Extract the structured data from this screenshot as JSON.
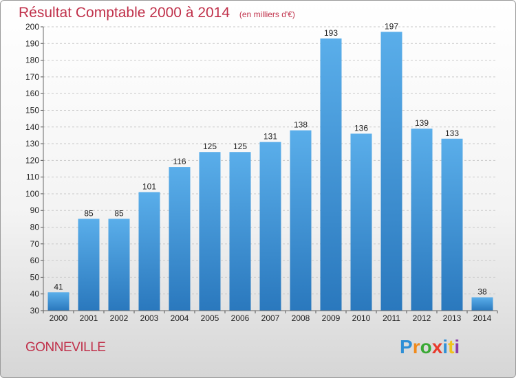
{
  "chart_data": {
    "type": "bar",
    "title": "Résultat Comptable 2000 à 2014",
    "subtitle": "(en milliers d'€)",
    "categories": [
      "2000",
      "2001",
      "2002",
      "2003",
      "2004",
      "2005",
      "2006",
      "2007",
      "2008",
      "2009",
      "2010",
      "2011",
      "2012",
      "2013",
      "2014"
    ],
    "values": [
      41,
      85,
      85,
      101,
      116,
      125,
      125,
      131,
      138,
      193,
      136,
      197,
      139,
      133,
      38
    ],
    "ylim": [
      30,
      200
    ],
    "yticks": [
      30,
      40,
      50,
      60,
      70,
      80,
      90,
      100,
      110,
      120,
      130,
      140,
      150,
      160,
      170,
      180,
      190,
      200
    ],
    "grid": true,
    "bar_color_top": "#5aaeea",
    "bar_color_bottom": "#2a78bd"
  },
  "place_label": "GONNEVILLE",
  "logo": {
    "letters": [
      "P",
      "r",
      "o",
      "x",
      "i",
      "t",
      "i"
    ],
    "colors": [
      "#2e8fd6",
      "#f08a1c",
      "#3aa935",
      "#e83a2c",
      "#2e8fd6",
      "#f0c21c",
      "#8b3aa9"
    ]
  },
  "colors": {
    "title": "#c0304a",
    "grid": "#c9c9c9",
    "axis_text": "#222222"
  }
}
